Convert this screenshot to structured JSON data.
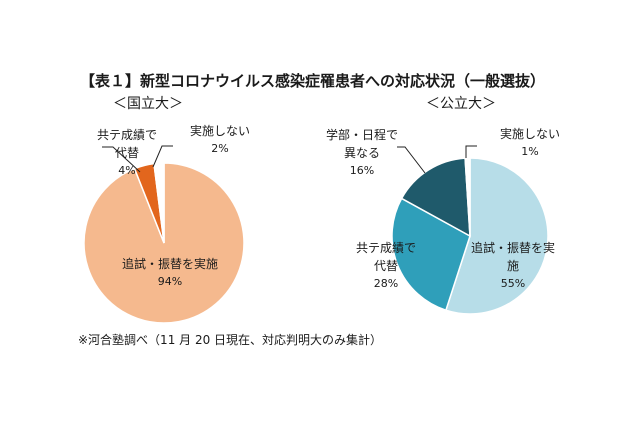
{
  "title": "【表１】新型コロナウイルス感染症罹患者への対応状況（一般選抜）",
  "note": "※河合塾調べ（11 月 20 日現在、対応判明大のみ集計）",
  "colors": {
    "national": [
      "#f5b98e",
      "#e2661d",
      "#ffffff"
    ],
    "public": [
      "#b7dde8",
      "#2f9fba",
      "#1f5a6b",
      "#ffffff"
    ],
    "outline": "#222222"
  },
  "chart_data": [
    {
      "type": "pie",
      "title": "＜国立大＞",
      "categories": [
        "追試・振替を実施",
        "共テ成績で代替",
        "実施しない"
      ],
      "values": [
        94,
        4,
        2
      ],
      "unit": "%"
    },
    {
      "type": "pie",
      "title": "＜公立大＞",
      "categories": [
        "追試・振替を実施",
        "共テ成績で代替",
        "学部・日程で異なる",
        "実施しない"
      ],
      "values": [
        55,
        28,
        16,
        1
      ],
      "unit": "%"
    }
  ]
}
